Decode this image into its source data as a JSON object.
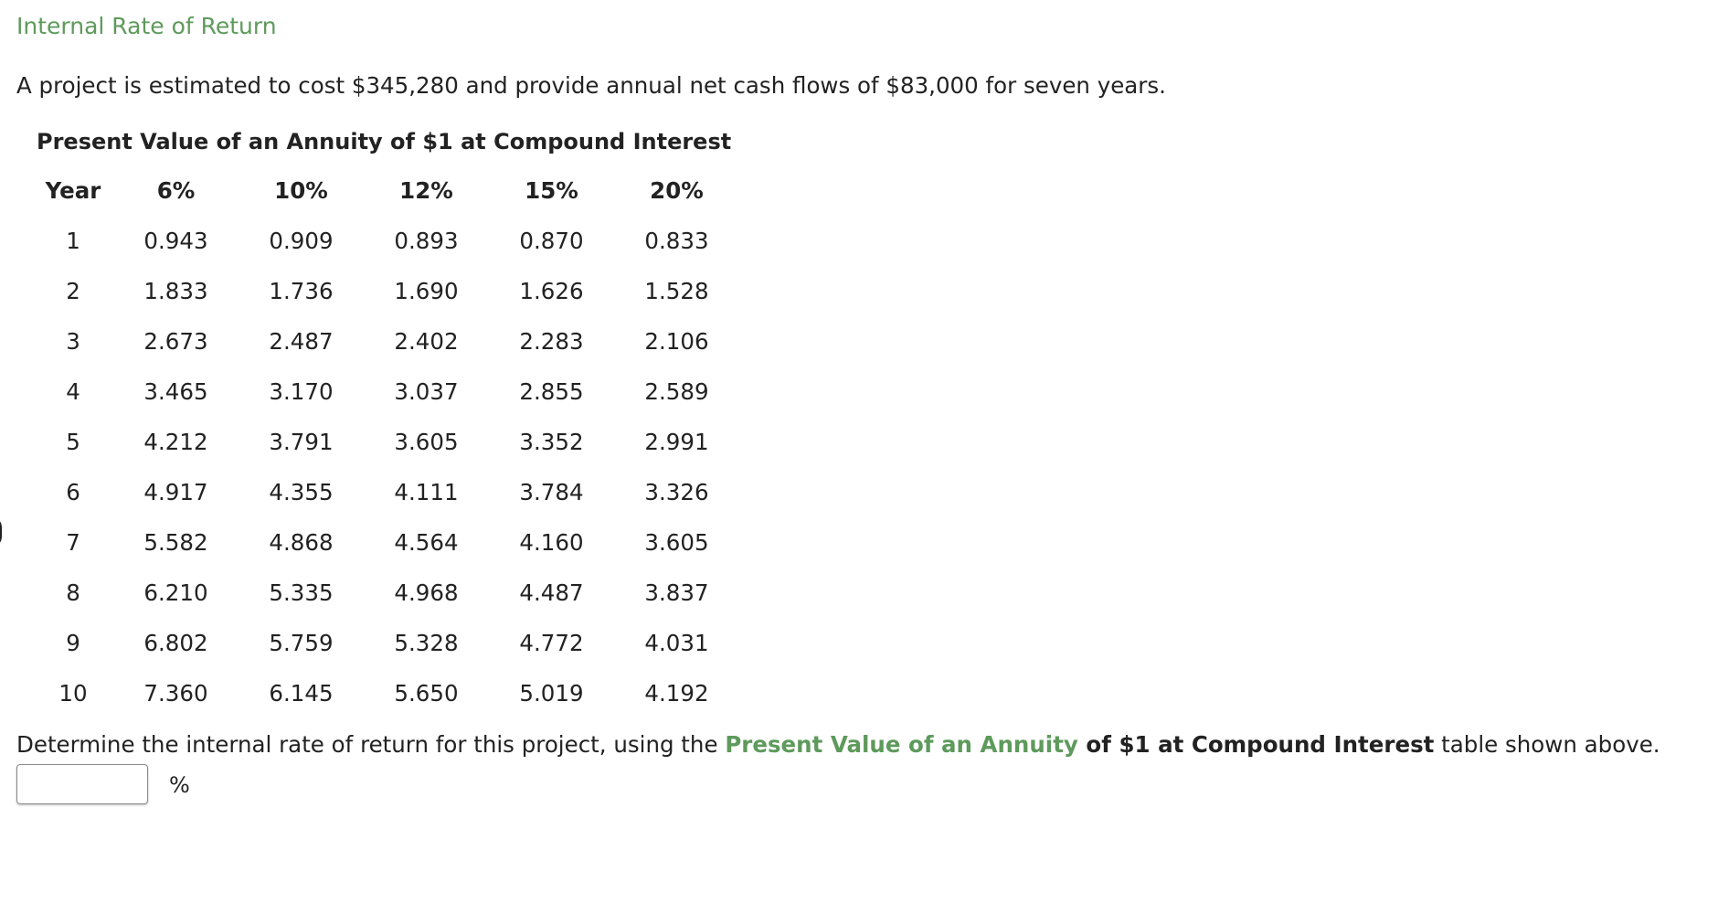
{
  "heading": "Internal Rate of Return",
  "intro": "A project is estimated to cost $345,280 and provide annual net cash flows of $83,000 for seven years.",
  "table": {
    "title": "Present Value of an Annuity of $1 at Compound Interest",
    "headers": [
      "Year",
      "6%",
      "10%",
      "12%",
      "15%",
      "20%"
    ],
    "rows": [
      [
        "1",
        "0.943",
        "0.909",
        "0.893",
        "0.870",
        "0.833"
      ],
      [
        "2",
        "1.833",
        "1.736",
        "1.690",
        "1.626",
        "1.528"
      ],
      [
        "3",
        "2.673",
        "2.487",
        "2.402",
        "2.283",
        "2.106"
      ],
      [
        "4",
        "3.465",
        "3.170",
        "3.037",
        "2.855",
        "2.589"
      ],
      [
        "5",
        "4.212",
        "3.791",
        "3.605",
        "3.352",
        "2.991"
      ],
      [
        "6",
        "4.917",
        "4.355",
        "4.111",
        "3.784",
        "3.326"
      ],
      [
        "7",
        "5.582",
        "4.868",
        "4.564",
        "4.160",
        "3.605"
      ],
      [
        "8",
        "6.210",
        "5.335",
        "4.968",
        "4.487",
        "3.837"
      ],
      [
        "9",
        "6.802",
        "5.759",
        "5.328",
        "4.772",
        "4.031"
      ],
      [
        "10",
        "7.360",
        "6.145",
        "5.650",
        "5.019",
        "4.192"
      ]
    ]
  },
  "question": {
    "prefix": "Determine the internal rate of return for this project, using the ",
    "link_text": "Present Value of an Annuity",
    "bold_text": " of $1 at Compound Interest",
    "suffix": " table shown above."
  },
  "answer": {
    "value": "",
    "placeholder": "",
    "unit": "%"
  },
  "colors": {
    "accent_green": "#5e9a5c",
    "text": "#222222",
    "input_border": "#8a8a8a"
  }
}
